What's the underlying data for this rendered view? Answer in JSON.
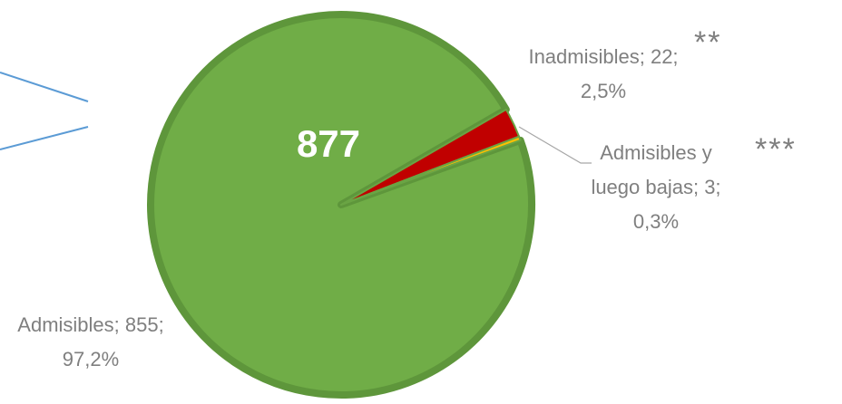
{
  "chart_data": {
    "type": "pie",
    "labels": [
      "Admisibles; 855; 97,2%",
      "Inadmisibles; 22; 2,5%",
      "Admisibles y luego bajas; 3; 0,3%"
    ],
    "values": [
      855,
      22,
      3
    ],
    "colors": [
      "#70ad47",
      "#c00000",
      "#ffc000"
    ],
    "total": 877,
    "annotations": [
      "**",
      "***"
    ]
  }
}
